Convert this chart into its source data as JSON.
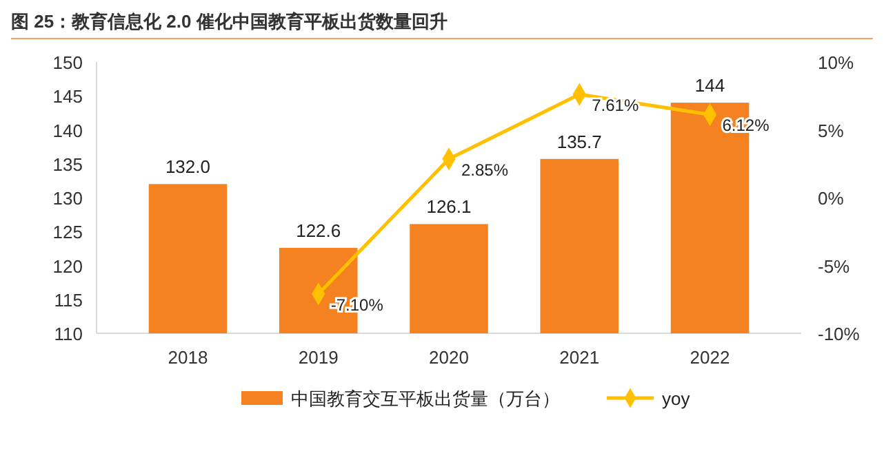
{
  "chart_data": {
    "type": "bar",
    "title": "图 25：教育信息化 2.0 催化中国教育平板出货数量回升",
    "categories": [
      "2018",
      "2019",
      "2020",
      "2021",
      "2022"
    ],
    "series": [
      {
        "name": "中国教育交互平板出货量（万台）",
        "color": "#f58220",
        "values": [
          132.0,
          122.6,
          126.1,
          135.7,
          144
        ],
        "value_labels": [
          "132.0",
          "122.6",
          "126.1",
          "135.7",
          "144"
        ]
      },
      {
        "name": "yoy",
        "type": "line",
        "axis": "y2",
        "color": "#ffc000",
        "marker": "diamond",
        "values": [
          null,
          -7.1,
          2.85,
          7.61,
          6.12
        ],
        "value_labels": [
          null,
          "-7.10%",
          "2.85%",
          "7.61%",
          "6.12%"
        ]
      }
    ],
    "ylim": [
      110,
      150
    ],
    "yticks": [
      110,
      115,
      120,
      125,
      130,
      135,
      140,
      145,
      150
    ],
    "y2lim": [
      -10,
      10
    ],
    "y2ticks": [
      {
        "value": -10,
        "label": "-10%"
      },
      {
        "value": -5,
        "label": "-5%"
      },
      {
        "value": 0,
        "label": "0%"
      },
      {
        "value": 5,
        "label": "5%"
      },
      {
        "value": 10,
        "label": "10%"
      }
    ],
    "legend": "bottom",
    "grid": false
  }
}
